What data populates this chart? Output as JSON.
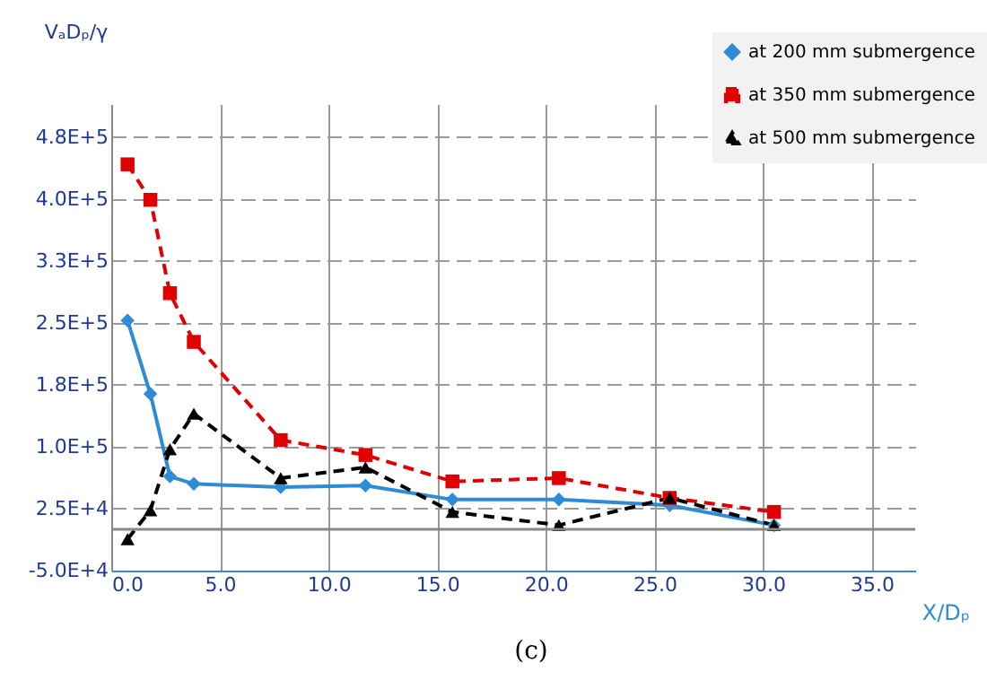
{
  "chart_data": {
    "type": "line",
    "xlabel": "X/Dₚ",
    "ylabel": "VₐDₚ/γ",
    "x": [
      0.75,
      1.8,
      2.7,
      3.8,
      7.8,
      11.7,
      15.7,
      20.6,
      25.7,
      30.5
    ],
    "series": [
      {
        "name": "at 200 mm submergence",
        "color": "#2e8bd6",
        "marker": "diamond",
        "line_style": "solid",
        "values": [
          253000,
          164000,
          64000,
          55000,
          51000,
          53000,
          36000,
          36000,
          29000,
          5000
        ]
      },
      {
        "name": "at 350 mm submergence",
        "color": "#e00000",
        "marker": "square",
        "line_style": "dashed",
        "values": [
          442000,
          399000,
          286000,
          227000,
          108000,
          90000,
          58000,
          62000,
          38000,
          21000
        ]
      },
      {
        "name": "at 500 mm submergence",
        "color": "#000000",
        "marker": "triangle",
        "line_style": "dashed",
        "values": [
          -12000,
          23000,
          97000,
          140000,
          62000,
          75000,
          21000,
          5000,
          38000,
          5000
        ]
      }
    ],
    "xlim": [
      0,
      37
    ],
    "xticks": [
      {
        "value": 0,
        "label": "0.0"
      },
      {
        "value": 5,
        "label": "5.0"
      },
      {
        "value": 10,
        "label": "10.0"
      },
      {
        "value": 15,
        "label": "15.0"
      },
      {
        "value": 20,
        "label": "20.0"
      },
      {
        "value": 25,
        "label": "25.0"
      },
      {
        "value": 30,
        "label": "30.0"
      },
      {
        "value": 35,
        "label": "35.0"
      }
    ],
    "ylim": [
      -50000,
      515000
    ],
    "yticks": [
      {
        "value": -50000,
        "label": "-5.0E+4"
      },
      {
        "value": 25000,
        "label": "2.5E+4"
      },
      {
        "value": 100000,
        "label": "1.0E+5"
      },
      {
        "value": 175000,
        "label": "1.8E+5"
      },
      {
        "value": 250000,
        "label": "2.5E+5"
      },
      {
        "value": 325000,
        "label": "3.3E+5"
      },
      {
        "value": 400000,
        "label": "4.0E+5"
      },
      {
        "value": 475000,
        "label": "4.8E+5"
      }
    ],
    "ref_lines": [
      {
        "axis": "y",
        "value": 0,
        "color": "#888888",
        "line_style": "solid"
      }
    ],
    "grid": true,
    "legend": "top right",
    "annotations": [
      "(c)"
    ]
  }
}
